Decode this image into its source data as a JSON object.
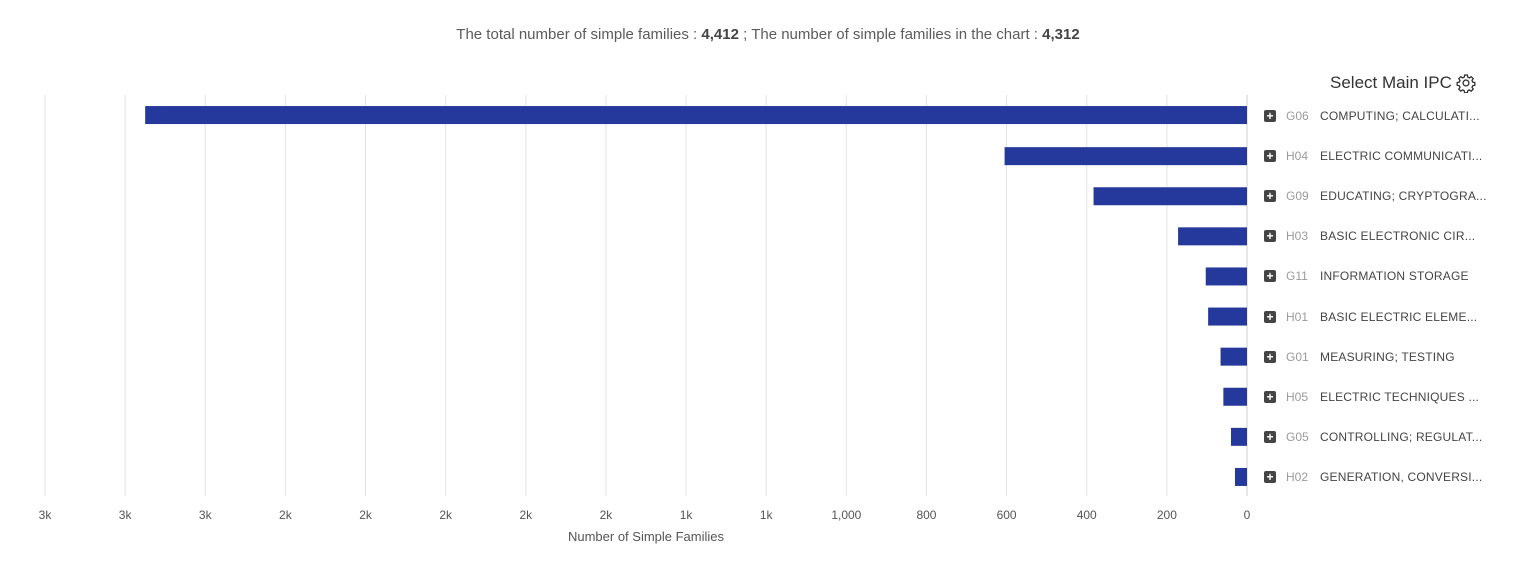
{
  "header": {
    "total_label": "The total number of simple families : ",
    "total_value": "4,412",
    "separator": " ; ",
    "chart_label": "The number of simple families in the chart : ",
    "chart_value": "4,312"
  },
  "controls": {
    "select_main_ipc": "Select Main IPC",
    "gear_icon": "gear-icon",
    "expand_icon": "plus-square-icon"
  },
  "colors": {
    "bar": "#25389b",
    "grid": "#e3e3e3"
  },
  "chart_data": {
    "type": "bar",
    "orientation": "horizontal",
    "x_reversed": true,
    "categories": [
      {
        "code": "G06",
        "label": "COMPUTING; CALCULATI..."
      },
      {
        "code": "H04",
        "label": "ELECTRIC COMMUNICATI..."
      },
      {
        "code": "G09",
        "label": "EDUCATING; CRYPTOGRA..."
      },
      {
        "code": "H03",
        "label": "BASIC ELECTRONIC CIR..."
      },
      {
        "code": "G11",
        "label": "INFORMATION STORAGE"
      },
      {
        "code": "H01",
        "label": "BASIC ELECTRIC ELEME..."
      },
      {
        "code": "G01",
        "label": "MEASURING; TESTING"
      },
      {
        "code": "H05",
        "label": "ELECTRIC TECHNIQUES ..."
      },
      {
        "code": "G05",
        "label": "CONTROLLING; REGULAT..."
      },
      {
        "code": "H02",
        "label": "GENERATION, CONVERSI..."
      }
    ],
    "values": [
      2750,
      605,
      383,
      172,
      103,
      97,
      66,
      59,
      40,
      30
    ],
    "xlabel": "Number of Simple Families",
    "ylabel": "",
    "xlim": [
      0,
      3000
    ],
    "xticks": [
      0,
      200,
      400,
      600,
      800,
      1000,
      1200,
      1400,
      1600,
      1800,
      2000,
      2200,
      2400,
      2600,
      2800,
      3000
    ],
    "xtick_labels": [
      "0",
      "200",
      "400",
      "600",
      "800",
      "1,000",
      "1k",
      "1k",
      "2k",
      "2k",
      "2k",
      "2k",
      "2k",
      "3k",
      "3k",
      "3k"
    ],
    "grid": true
  }
}
